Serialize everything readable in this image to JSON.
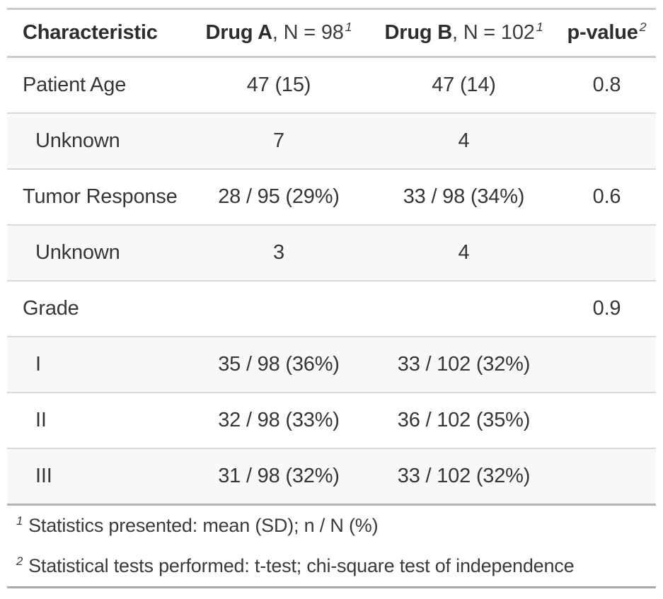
{
  "header": {
    "characteristic": "Characteristic",
    "drug_a": {
      "bold": "Drug A",
      "rest": ", N = 98",
      "mark": "1"
    },
    "drug_b": {
      "bold": "Drug B",
      "rest": ", N = 102",
      "mark": "1"
    },
    "p_value": {
      "bold": "p-value",
      "mark": "2"
    }
  },
  "rows": [
    {
      "label": "Patient Age",
      "drug_a": "47 (15)",
      "drug_b": "47 (14)",
      "p": "0.8"
    },
    {
      "label": "Unknown",
      "drug_a": "7",
      "drug_b": "4",
      "p": ""
    },
    {
      "label": "Tumor Response",
      "drug_a": "28 / 95 (29%)",
      "drug_b": "33 / 98 (34%)",
      "p": "0.6"
    },
    {
      "label": "Unknown",
      "drug_a": "3",
      "drug_b": "4",
      "p": ""
    },
    {
      "label": "Grade",
      "drug_a": "",
      "drug_b": "",
      "p": "0.9"
    },
    {
      "label": "I",
      "drug_a": "35 / 98 (36%)",
      "drug_b": "33 / 102 (32%)",
      "p": ""
    },
    {
      "label": "II",
      "drug_a": "32 / 98 (33%)",
      "drug_b": "36 / 102 (35%)",
      "p": ""
    },
    {
      "label": "III",
      "drug_a": "31 / 98 (32%)",
      "drug_b": "33 / 102 (32%)",
      "p": ""
    }
  ],
  "footnotes": [
    {
      "mark": "1",
      "text": "Statistics presented: mean (SD); n / N (%)"
    },
    {
      "mark": "2",
      "text": "Statistical tests performed: t-test; chi-square test of independence"
    }
  ],
  "colors": {
    "stripe_background": "#F8F8F8",
    "row_separator": "#D9D9D9",
    "outer_border_light": "#CBCBCB",
    "outer_border_dark": "#A9A9A9",
    "text": "#363636"
  }
}
